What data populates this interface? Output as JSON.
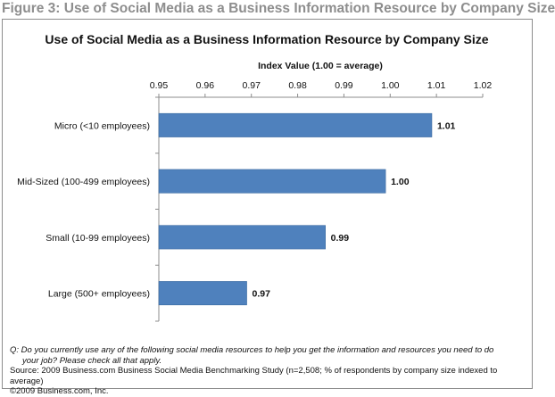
{
  "figure_heading": "Figure 3: Use of Social Media as a Business Information Resource by Company Size",
  "colors": {
    "bar": "#4f81bd",
    "bar_border": "#3a6aa0",
    "axis": "#8c8c8c",
    "heading": "#8e8e8e"
  },
  "chart_data": {
    "type": "bar",
    "orientation": "horizontal",
    "title": "Use of Social Media as a Business Information Resource by Company Size",
    "xlabel": "Index Value (1.00 = average)",
    "ylabel": "",
    "axis_position": "top",
    "xlim": [
      0.95,
      1.02
    ],
    "ticks": [
      "0.95",
      "0.96",
      "0.97",
      "0.98",
      "0.99",
      "1.00",
      "1.01",
      "1.02"
    ],
    "tick_values": [
      0.95,
      0.96,
      0.97,
      0.98,
      0.99,
      1.0,
      1.01,
      1.02
    ],
    "grid": false,
    "categories": [
      "Micro (<10 employees)",
      "Mid-Sized (100-499 employees)",
      "Small (10-99 employees)",
      "Large (500+ employees)"
    ],
    "values": [
      1.009,
      0.999,
      0.986,
      0.969
    ],
    "data_labels": [
      "1.01",
      "1.00",
      "0.99",
      "0.97"
    ]
  },
  "footnotes": {
    "question_line1": "Q: Do you currently use any of the following social media resources to help you get the information and resources you need to do",
    "question_line2": "your job? Please check all that apply.",
    "source": "Source: 2009 Business.com Business Social Media Benchmarking Study (n=2,508; % of respondents by company size indexed to average)",
    "copyright": "©2009 Business.com, Inc."
  }
}
